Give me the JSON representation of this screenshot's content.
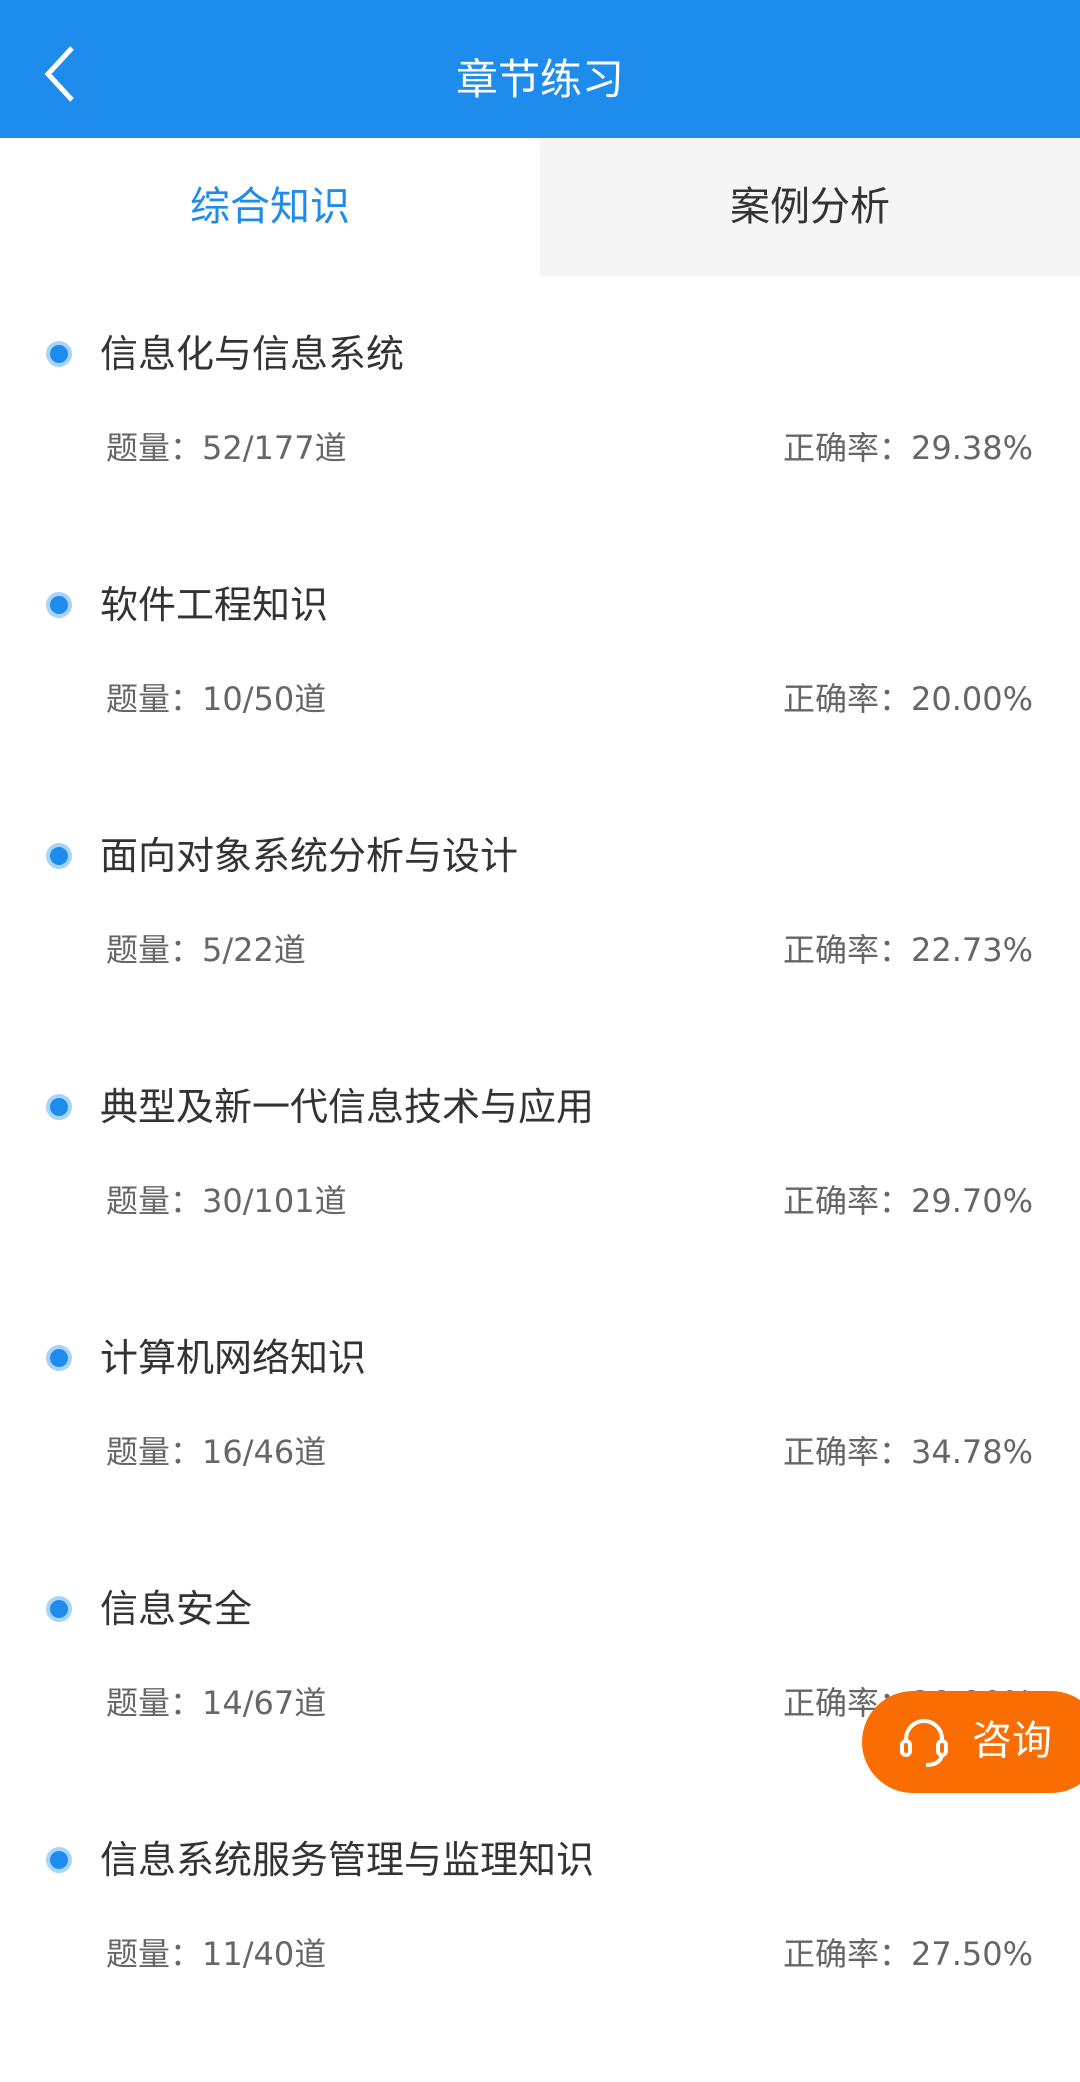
{
  "header": {
    "title": "章节练习",
    "back_icon": "chevron-left-icon"
  },
  "tabs": [
    {
      "label": "综合知识",
      "active": true
    },
    {
      "label": "案例分析",
      "active": false
    }
  ],
  "colors": {
    "primary": "#1e8ced",
    "consult": "#fa6d02"
  },
  "chapters": [
    {
      "title": "信息化与信息系统",
      "count": "题量：52/177道",
      "accuracy": "正确率：29.38%"
    },
    {
      "title": "软件工程知识",
      "count": "题量：10/50道",
      "accuracy": "正确率：20.00%"
    },
    {
      "title": "面向对象系统分析与设计",
      "count": "题量：5/22道",
      "accuracy": "正确率：22.73%"
    },
    {
      "title": "典型及新一代信息技术与应用",
      "count": "题量：30/101道",
      "accuracy": "正确率：29.70%"
    },
    {
      "title": "计算机网络知识",
      "count": "题量：16/46道",
      "accuracy": "正确率：34.78%"
    },
    {
      "title": "信息安全",
      "count": "题量：14/67道",
      "accuracy": "正确率：20.90%"
    },
    {
      "title": "信息系统服务管理与监理知识",
      "count": "题量：11/40道",
      "accuracy": "正确率：27.50%"
    }
  ],
  "consult": {
    "label": "咨询",
    "icon": "headset-icon"
  }
}
